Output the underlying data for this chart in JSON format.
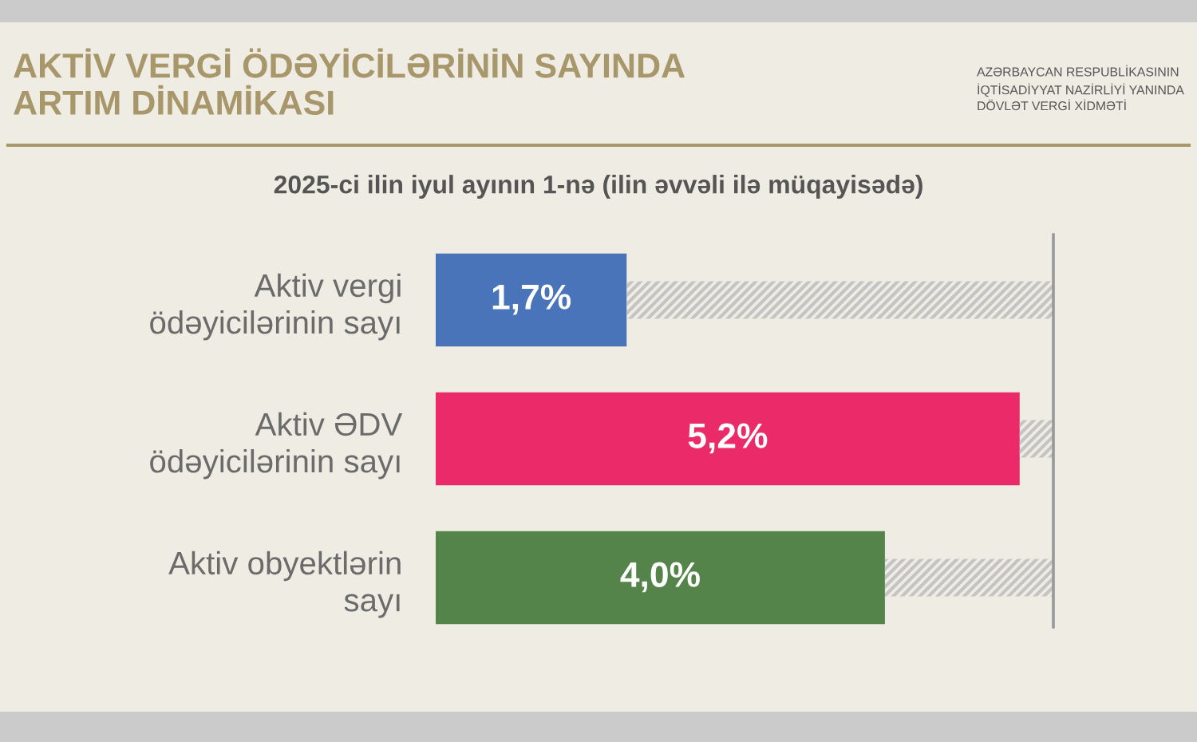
{
  "chart_data": {
    "type": "bar",
    "orientation": "horizontal",
    "stacked": true,
    "title": "AKTİV VERGİ ÖDƏYİCİLƏRİNİN SAYINDA\nARTIM DİNAMİKASI",
    "subtitle": "2025-ci ilin iyul ayının 1-nə (ilin əvvəli ilə müqayisədə)",
    "categories": [
      "Aktiv vergi\nödəyicilərinin sayı",
      "Aktiv ƏDV\nödəyicilərinin sayı",
      "Aktiv obyektlərin\nsayı"
    ],
    "series": [
      {
        "colors": [
          "#4a74b9",
          "#eb2b69",
          "#55844a"
        ],
        "values": [
          1.7,
          5.2,
          4.0
        ],
        "value_labels": [
          "1,7%",
          "5,2%",
          "4,0%"
        ]
      },
      {
        "color": "#c4c4c4",
        "values": [
          3.8,
          0.3,
          1.5
        ]
      }
    ],
    "ref_lines": [
      {
        "axis": "x",
        "value": 5.5,
        "color": "#999999"
      }
    ],
    "annotations": [
      "AZƏRBAYCAN RESPUBLİKASININ\nİQTİSADİYYAT NAZİRLİYİ YANINDA\nDÖVLƏT VERGİ XİDMƏTİ"
    ],
    "grid": false,
    "legend": false
  }
}
